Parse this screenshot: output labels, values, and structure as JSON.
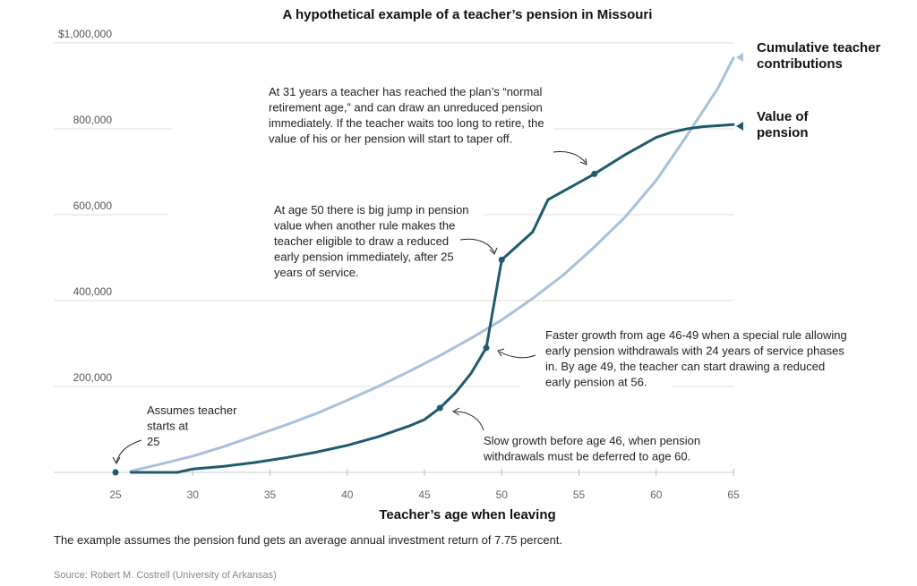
{
  "chart_data": {
    "type": "line",
    "title": "A hypothetical example of a teacher’s pension in Missouri",
    "xlabel": "Teacher’s age when leaving",
    "ylabel": "",
    "xlim": [
      25,
      65
    ],
    "ylim": [
      0,
      1000000
    ],
    "x_ticks": [
      "25",
      "30",
      "35",
      "40",
      "45",
      "50",
      "55",
      "60",
      "65"
    ],
    "y_ticks": [
      {
        "value": 1000000,
        "label": "$1,000,000"
      },
      {
        "value": 800000,
        "label": "800,000"
      },
      {
        "value": 600000,
        "label": "600,000"
      },
      {
        "value": 400000,
        "label": "400,000"
      },
      {
        "value": 200000,
        "label": "200,000"
      }
    ],
    "grid": true,
    "series": [
      {
        "name": "Cumulative teacher contributions",
        "label_lines": [
          "Cumulative teacher",
          "contributions"
        ],
        "color": "#a7c1da",
        "x": [
          26,
          28,
          30,
          32,
          34,
          36,
          38,
          40,
          42,
          44,
          46,
          48,
          50,
          52,
          54,
          56,
          58,
          60,
          62,
          64,
          65
        ],
        "y": [
          3000,
          20000,
          38000,
          60000,
          85000,
          110000,
          137000,
          168000,
          200000,
          235000,
          272000,
          312000,
          355000,
          405000,
          460000,
          525000,
          595000,
          680000,
          785000,
          895000,
          965000
        ]
      },
      {
        "name": "Value of pension",
        "label_lines": [
          "Value of",
          "pension"
        ],
        "color": "#1f5b6c",
        "x": [
          26,
          29,
          30,
          32,
          34,
          36,
          38,
          40,
          42,
          44,
          45,
          46,
          47,
          48,
          49,
          50,
          52,
          53,
          54,
          56,
          58,
          60,
          61,
          62,
          63,
          65
        ],
        "y": [
          0,
          0,
          8000,
          14000,
          23000,
          34000,
          47000,
          63000,
          83000,
          108000,
          123000,
          150000,
          185000,
          230000,
          290000,
          495000,
          560000,
          635000,
          655000,
          695000,
          740000,
          780000,
          792000,
          800000,
          805000,
          810000
        ]
      }
    ],
    "markers": [
      {
        "x": 25,
        "y": 0
      },
      {
        "x": 46,
        "y": 150000
      },
      {
        "x": 49,
        "y": 290000
      },
      {
        "x": 50,
        "y": 495000
      },
      {
        "x": 56,
        "y": 695000
      }
    ],
    "annotations": [
      {
        "id": "ann-normal-retirement",
        "lines": [
          "At 31 years a teacher has reached the plan’s “normal",
          "retirement age,” and can draw an unreduced pension",
          "immediately. If the teacher waits too long to retire, the",
          "value of his or her pension will start to taper off."
        ]
      },
      {
        "id": "ann-age-50",
        "lines": [
          "At age 50 there is big jump in pension",
          "value when another rule makes the",
          "teacher eligible to draw a reduced",
          "early pension immediately, after 25",
          "years of service."
        ]
      },
      {
        "id": "ann-faster-growth",
        "lines": [
          "Faster growth from age 46-49 when a special rule allowing",
          "early pension withdrawals with 24 years of service phases",
          "in. By age 49, the teacher can start drawing a reduced",
          "early pension at 56."
        ]
      },
      {
        "id": "ann-slow-growth",
        "lines": [
          "Slow growth before age 46, when pension",
          "withdrawals must be deferred to age 60."
        ]
      },
      {
        "id": "ann-start",
        "lines": [
          "Assumes teacher",
          "starts at",
          "25"
        ]
      }
    ]
  },
  "footnote": "The example assumes the pension fund gets an average annual investment return of 7.75 percent.",
  "source": "Source: Robert M. Costrell (University of Arkansas)"
}
